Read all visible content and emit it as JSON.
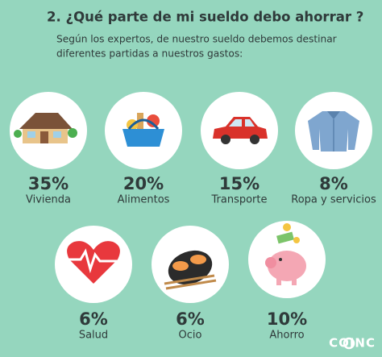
{
  "header": {
    "title": "2. ¿Qué parte de mi sueldo debo ahorrar ?",
    "subtitle": [
      "Según los expertos, de nuestro sueldo debemos destinar",
      "diferentes partidas a nuestros gastos:"
    ]
  },
  "items": [
    {
      "percent": "35%",
      "label": "Vivienda"
    },
    {
      "percent": "20%",
      "label": "Alimentos"
    },
    {
      "percent": "15%",
      "label": "Transporte"
    },
    {
      "percent": "8%",
      "label": "Ropa y servicios"
    },
    {
      "percent": "6%",
      "label": "Salud"
    },
    {
      "percent": "6%",
      "label": "Ocio"
    },
    {
      "percent": "10%",
      "label": "Ahorro"
    }
  ],
  "logo": "COINC"
}
